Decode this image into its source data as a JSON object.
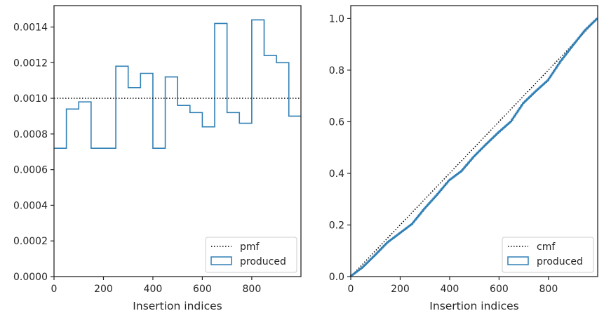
{
  "chart_data": [
    {
      "type": "step-histogram",
      "xlabel": "Insertion indices",
      "ylabel": "",
      "xlim": [
        0,
        999
      ],
      "ylim": [
        0,
        0.00152
      ],
      "xticks": [
        0,
        200,
        400,
        600,
        800
      ],
      "xtick_labels": [
        "0",
        "200",
        "400",
        "600",
        "800"
      ],
      "yticks": [
        0,
        0.0002,
        0.0004,
        0.0006,
        0.0008,
        0.001,
        0.0012,
        0.0014
      ],
      "ytick_labels": [
        "0.0000",
        "0.0002",
        "0.0004",
        "0.0006",
        "0.0008",
        "0.0010",
        "0.0012",
        "0.0014"
      ],
      "grid": false,
      "legend_position": "lower-right",
      "reference_line": {
        "name": "pmf",
        "value": 0.001,
        "style": "dotted",
        "color": "#000000"
      },
      "series": [
        {
          "name": "produced",
          "color": "#2f7fb5",
          "bin_edges": [
            0,
            50,
            100,
            150,
            200,
            250,
            300,
            350,
            400,
            450,
            500,
            550,
            600,
            650,
            700,
            750,
            800,
            850,
            900,
            950,
            1000
          ],
          "values": [
            0.00072,
            0.00094,
            0.00098,
            0.00072,
            0.00072,
            0.00118,
            0.00106,
            0.00114,
            0.00072,
            0.00112,
            0.00096,
            0.00092,
            0.00084,
            0.00142,
            0.00092,
            0.00086,
            0.00144,
            0.00124,
            0.0012,
            0.0009
          ]
        }
      ]
    },
    {
      "type": "step-line",
      "xlabel": "Insertion indices",
      "ylabel": "",
      "xlim": [
        0,
        999
      ],
      "ylim": [
        0,
        1.05
      ],
      "xticks": [
        0,
        200,
        400,
        600,
        800
      ],
      "xtick_labels": [
        "0",
        "200",
        "400",
        "600",
        "800"
      ],
      "yticks": [
        0,
        0.2,
        0.4,
        0.6,
        0.8,
        1.0
      ],
      "ytick_labels": [
        "0.0",
        "0.2",
        "0.4",
        "0.6",
        "0.8",
        "1.0"
      ],
      "grid": false,
      "legend_position": "lower-right",
      "reference_line": {
        "name": "cmf",
        "from": [
          0,
          0
        ],
        "to": [
          999,
          1.0
        ],
        "style": "dotted",
        "color": "#000000"
      },
      "series": [
        {
          "name": "produced",
          "color": "#2f7fb5",
          "x": [
            0,
            50,
            100,
            150,
            200,
            250,
            300,
            350,
            400,
            450,
            500,
            550,
            600,
            650,
            700,
            750,
            800,
            850,
            900,
            950,
            999
          ],
          "y": [
            0,
            0.036,
            0.083,
            0.132,
            0.168,
            0.204,
            0.263,
            0.316,
            0.373,
            0.409,
            0.465,
            0.513,
            0.559,
            0.601,
            0.672,
            0.718,
            0.761,
            0.833,
            0.895,
            0.955,
            1.0
          ]
        }
      ]
    }
  ],
  "legends": [
    {
      "line_label": "pmf",
      "patch_label": "produced"
    },
    {
      "line_label": "cmf",
      "patch_label": "produced"
    }
  ],
  "colors": {
    "series": "#2f7fb5",
    "reference": "#000000",
    "axes": "#262626"
  }
}
